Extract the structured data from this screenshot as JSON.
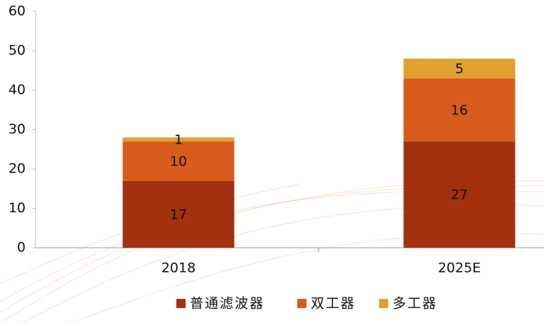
{
  "chart_data": {
    "type": "bar",
    "stacked": true,
    "categories": [
      "2018",
      "2025E"
    ],
    "series": [
      {
        "name": "普通滤波器",
        "color": "#a3300f",
        "values": [
          17,
          27
        ]
      },
      {
        "name": "双工器",
        "color": "#d95b1c",
        "values": [
          10,
          16
        ]
      },
      {
        "name": "多工器",
        "color": "#e2a030",
        "values": [
          1,
          5
        ]
      }
    ],
    "ylim": [
      0,
      60
    ],
    "yticks": [
      0,
      10,
      20,
      30,
      40,
      50,
      60
    ],
    "legend": "bottom"
  }
}
